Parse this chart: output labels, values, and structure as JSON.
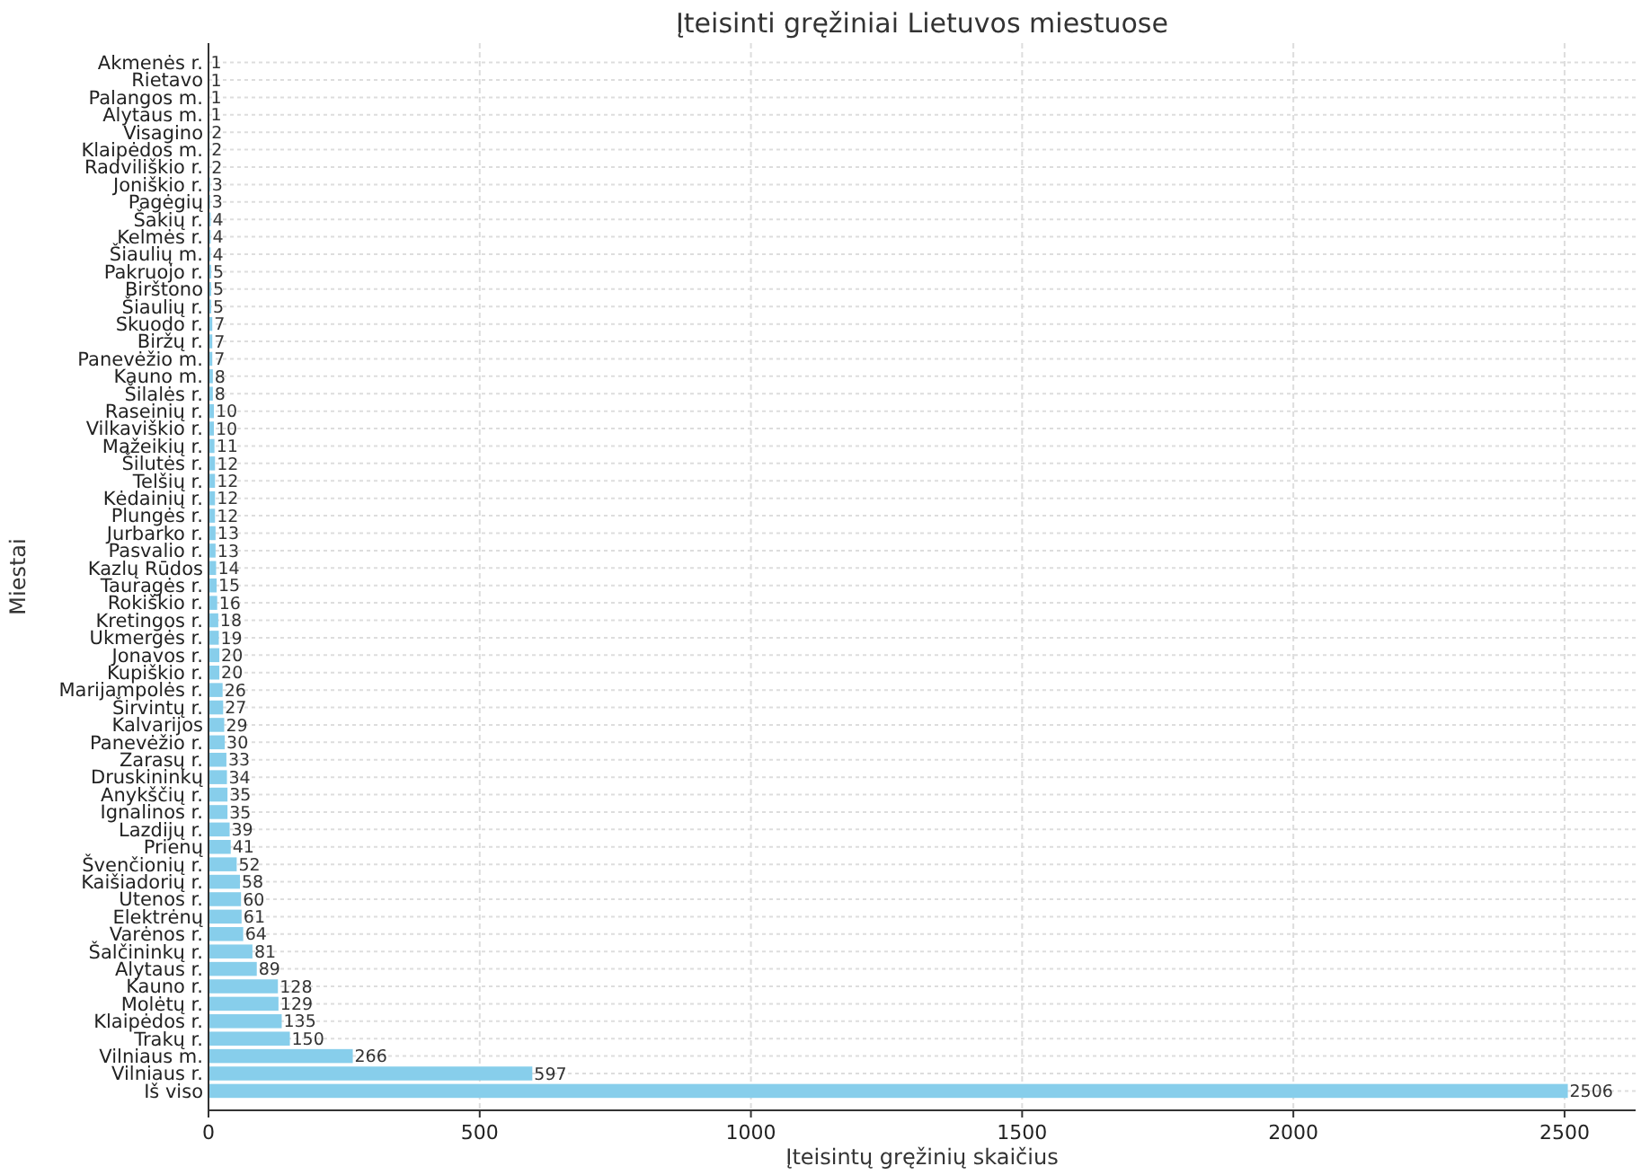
{
  "chart_data": {
    "type": "bar",
    "orientation": "horizontal",
    "title": "Įteisinti gręžiniai Lietuvos miestuose",
    "xlabel": "Įteisintų gręžinių skaičius",
    "ylabel": "Miestai",
    "categories": [
      "Akmenės r.",
      "Rietavo",
      "Palangos m.",
      "Alytaus m.",
      "Visagino",
      "Klaipėdos m.",
      "Radviliškio r.",
      "Joniškio r.",
      "Pagėgių",
      "Šakių r.",
      "Kelmės r.",
      "Šiaulių m.",
      "Pakruojo r.",
      "Birštono",
      "Šiaulių r.",
      "Skuodo r.",
      "Biržų r.",
      "Panevėžio m.",
      "Kauno m.",
      "Šilalės r.",
      "Raseinių r.",
      "Vilkaviškio r.",
      "Mažeikių r.",
      "Šilutės r.",
      "Telšių r.",
      "Kėdainių r.",
      "Plungės r.",
      "Jurbarko r.",
      "Pasvalio r.",
      "Kazlų Rūdos",
      "Tauragės r.",
      "Rokiškio r.",
      "Kretingos r.",
      "Ukmergės r.",
      "Jonavos r.",
      "Kupiškio r.",
      "Marijampolės r.",
      "Širvintų r.",
      "Kalvarijos",
      "Panevėžio r.",
      "Zarasų r.",
      "Druskininkų",
      "Anykščių r.",
      "Ignalinos r.",
      "Lazdijų r.",
      "Prienų",
      "Švenčionių r.",
      "Kaišiadorių r.",
      "Utenos r.",
      "Elektrėnų",
      "Varėnos r.",
      "Šalčininkų r.",
      "Alytaus r.",
      "Kauno r.",
      "Molėtų r.",
      "Klaipėdos r.",
      "Trakų r.",
      "Vilniaus m.",
      "Vilniaus r.",
      "Iš viso"
    ],
    "values": [
      1,
      1,
      1,
      1,
      2,
      2,
      2,
      3,
      3,
      4,
      4,
      4,
      5,
      5,
      5,
      7,
      7,
      7,
      8,
      8,
      10,
      10,
      11,
      12,
      12,
      12,
      12,
      13,
      13,
      14,
      15,
      16,
      18,
      19,
      20,
      20,
      26,
      27,
      29,
      30,
      33,
      34,
      35,
      35,
      39,
      41,
      52,
      58,
      60,
      61,
      64,
      81,
      89,
      128,
      129,
      135,
      150,
      266,
      597,
      2506
    ],
    "color": "#87ceeb",
    "xlim": [
      0,
      2631
    ],
    "xticks": [
      0,
      500,
      1000,
      1500,
      2000,
      2500
    ],
    "grid": true,
    "data_labels": true
  }
}
